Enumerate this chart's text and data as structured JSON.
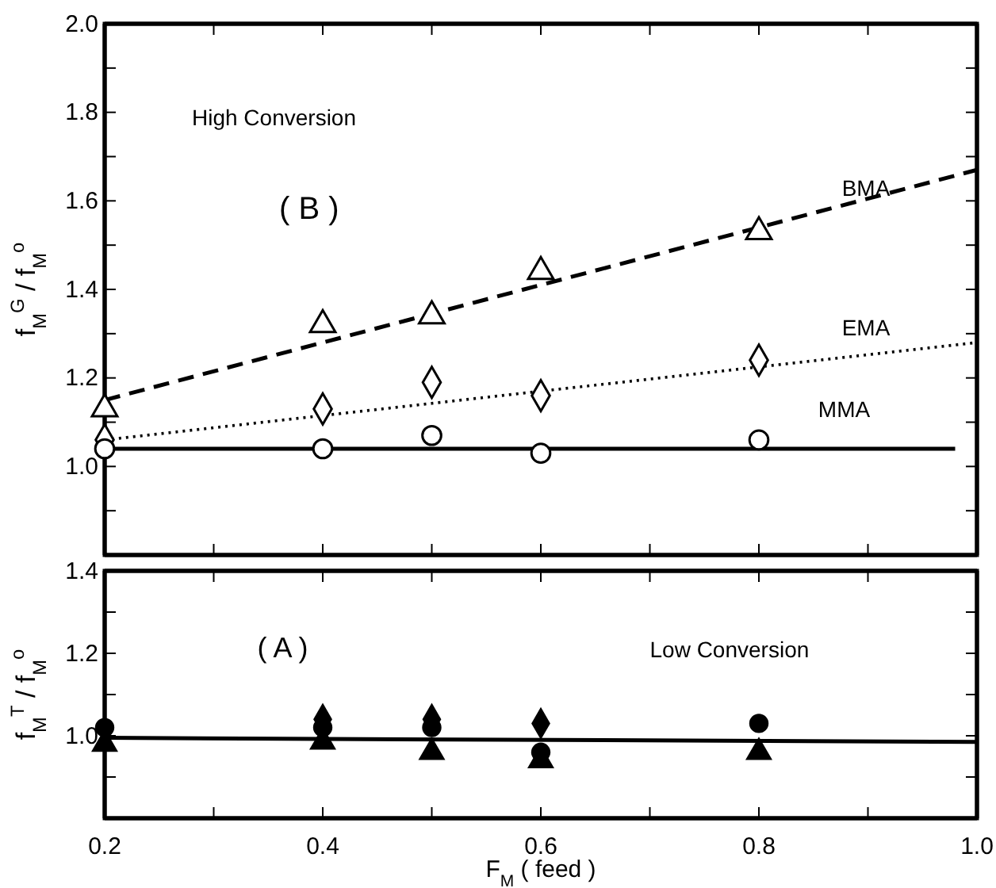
{
  "chart_data": [
    {
      "type": "scatter",
      "ylabel": "f$_{M}$$^{G}$ / f$_{M}$$^{o}$",
      "annotations": [
        "High Conversion",
        "( B )"
      ],
      "xlim": [
        0.2,
        1.0
      ],
      "xticks": [
        {
          "value": 0.2,
          "label": null
        },
        {
          "value": 0.3,
          "label": null
        },
        {
          "value": 0.4,
          "label": null
        },
        {
          "value": 0.5,
          "label": null
        },
        {
          "value": 0.6,
          "label": null
        },
        {
          "value": 0.7,
          "label": null
        },
        {
          "value": 0.8,
          "label": null
        },
        {
          "value": 0.9,
          "label": null
        },
        {
          "value": 1.0,
          "label": null
        }
      ],
      "ylim": [
        0.8,
        2.0
      ],
      "yticks": [
        {
          "value": 0.9,
          "label": null
        },
        {
          "value": 1.0,
          "label": "1.0"
        },
        {
          "value": 1.1,
          "label": null
        },
        1.2,
        {
          "value": 1.3,
          "label": null
        },
        1.4,
        {
          "value": 1.5,
          "label": null
        },
        1.6,
        {
          "value": 1.7,
          "label": null
        },
        1.8,
        {
          "value": 1.9,
          "label": null
        },
        {
          "value": 2.0,
          "label": "2.0"
        }
      ],
      "tick_labels": "y",
      "grid": false,
      "series": [
        {
          "marker": "triangle",
          "color": "#000000",
          "x": [
            0.2,
            0.4,
            0.5,
            0.6,
            0.8
          ],
          "values": [
            1.13,
            1.32,
            1.34,
            1.44,
            1.53
          ]
        },
        {
          "marker": "diamond",
          "color": "#000000",
          "x": [
            0.2,
            0.4,
            0.5,
            0.6,
            0.8
          ],
          "values": [
            1.06,
            1.13,
            1.19,
            1.16,
            1.24
          ]
        },
        {
          "marker": "circle",
          "color": "#000000",
          "x": [
            0.2,
            0.4,
            0.5,
            0.6,
            0.8
          ],
          "values": [
            1.04,
            1.04,
            1.07,
            1.03,
            1.06
          ]
        },
        {
          "type": "line",
          "name": "BMA",
          "line_style": "dashed",
          "color": "#000000",
          "x": [
            0.2,
            1.0
          ],
          "values": [
            1.15,
            1.67
          ]
        },
        {
          "type": "line",
          "name": "EMA",
          "line_style": "dotted",
          "color": "#000000",
          "x": [
            0.2,
            1.0
          ],
          "values": [
            1.06,
            1.28
          ]
        },
        {
          "type": "line",
          "name": "MMA",
          "line_style": "solid",
          "color": "#000000",
          "x": [
            0.2,
            0.98
          ],
          "values": [
            1.04,
            1.04
          ]
        }
      ]
    },
    {
      "type": "scatter",
      "ylabel": "f$_{M}$$^{T}$ / f$_{M}$$^{o}$",
      "xlabel": "F$_{M}$ ( feed )",
      "annotations": [
        "( A )",
        "Low Conversion"
      ],
      "xlim": [
        0.2,
        1.0
      ],
      "xticks": [
        0.2,
        {
          "value": 0.3,
          "label": null
        },
        0.4,
        {
          "value": 0.5,
          "label": null
        },
        0.6,
        {
          "value": 0.7,
          "label": null
        },
        0.8,
        {
          "value": 0.9,
          "label": null
        },
        {
          "value": 1.0,
          "label": "1.0"
        }
      ],
      "ylim": [
        0.8,
        1.4
      ],
      "yticks": [
        {
          "value": 0.9,
          "label": null
        },
        {
          "value": 1.0,
          "label": "1.0"
        },
        {
          "value": 1.1,
          "label": null
        },
        1.2,
        {
          "value": 1.3,
          "label": null
        },
        1.4
      ],
      "grid": false,
      "series": [
        {
          "marker": "diamond",
          "color": "#000000",
          "x": [
            0.4,
            0.5,
            0.6
          ],
          "values": [
            1.04,
            1.04,
            1.03
          ]
        },
        {
          "marker": "circle",
          "color": "#000000",
          "x": [
            0.2,
            0.4,
            0.5,
            0.6,
            0.8
          ],
          "values": [
            1.02,
            1.02,
            1.02,
            0.96,
            1.03
          ]
        },
        {
          "marker": "triangle",
          "color": "#000000",
          "x": [
            0.2,
            0.4,
            0.5,
            0.6,
            0.8
          ],
          "values": [
            0.98,
            0.985,
            0.96,
            0.94,
            0.96
          ]
        },
        {
          "type": "line",
          "line_style": "solid",
          "color": "#000000",
          "x": [
            0.2,
            1.0
          ],
          "values": [
            0.995,
            0.985
          ]
        }
      ]
    }
  ]
}
